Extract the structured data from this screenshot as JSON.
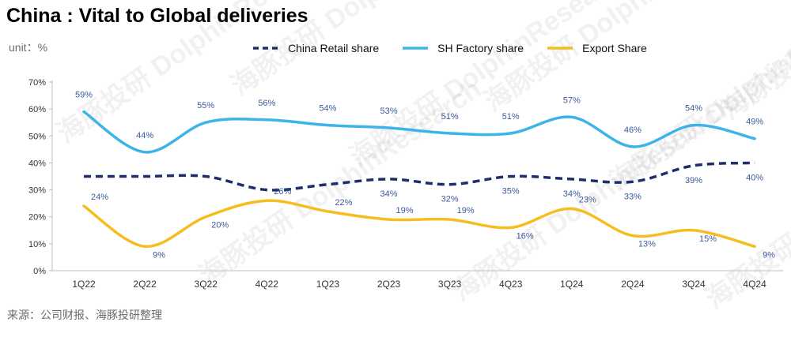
{
  "title": "China : Vital to Global deliveries",
  "unit": "unit：%",
  "source": "来源：公司财报、海豚投研整理",
  "watermark": "海豚投研 DolphinResearch",
  "colors": {
    "china_retail": "#1f2d6e",
    "sh_factory": "#3db4e8",
    "export": "#f5bd1f",
    "axis_text": "#333333",
    "label_blue": "#3a5a99"
  },
  "chart_data": {
    "type": "line",
    "title": "China : Vital to Global deliveries",
    "ylabel": "unit：%",
    "categories": [
      "1Q22",
      "2Q22",
      "3Q22",
      "4Q22",
      "1Q23",
      "2Q23",
      "3Q23",
      "4Q23",
      "1Q24",
      "2Q24",
      "3Q24",
      "4Q24"
    ],
    "ylim": [
      0,
      70
    ],
    "yticks": [
      0,
      10,
      20,
      30,
      40,
      50,
      60,
      70
    ],
    "ytick_labels": [
      "0%",
      "10%",
      "20%",
      "30%",
      "40%",
      "50%",
      "60%",
      "70%"
    ],
    "grid": false,
    "legend_position": "top-center",
    "series": [
      {
        "key": "china_retail",
        "name": "China Retail share",
        "style": "dashed",
        "values": [
          35,
          35,
          35,
          30,
          32,
          34,
          32,
          35,
          34,
          33,
          39,
          40
        ],
        "labels": [
          "",
          "",
          "",
          "",
          "",
          "34%",
          "32%",
          "35%",
          "34%",
          "33%",
          "39%",
          "40%"
        ]
      },
      {
        "key": "sh_factory",
        "name": "SH Factory share",
        "style": "solid",
        "values": [
          59,
          44,
          55,
          56,
          54,
          53,
          51,
          51,
          57,
          46,
          54,
          49
        ],
        "labels": [
          "59%",
          "44%",
          "55%",
          "56%",
          "54%",
          "53%",
          "51%",
          "51%",
          "57%",
          "46%",
          "54%",
          "49%"
        ]
      },
      {
        "key": "export",
        "name": "Export Share",
        "style": "solid",
        "values": [
          24,
          9,
          20,
          26,
          22,
          19,
          19,
          16,
          23,
          13,
          15,
          9
        ],
        "labels": [
          "24%",
          "9%",
          "20%",
          "26%",
          "22%",
          "19%",
          "19%",
          "16%",
          "23%",
          "13%",
          "15%",
          "9%"
        ]
      }
    ]
  }
}
